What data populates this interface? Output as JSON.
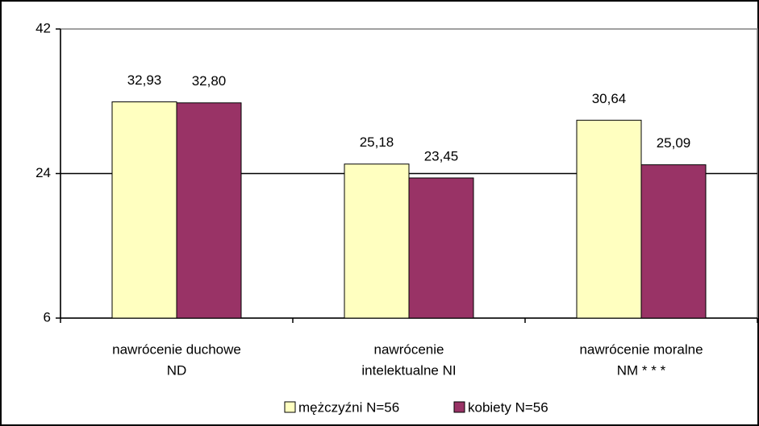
{
  "chart_data": {
    "type": "bar",
    "categories": [
      [
        "nawrócenie  duchowe",
        "ND"
      ],
      [
        "nawrócenie",
        "intelektualne NI"
      ],
      [
        "nawrócenie   moralne",
        "NM * * *"
      ]
    ],
    "series": [
      {
        "name": "mężczyźni N=56",
        "color": "#ffffc0",
        "values": [
          32.93,
          25.18,
          30.64
        ],
        "value_labels": [
          "32,93",
          "25,18",
          "30,64"
        ]
      },
      {
        "name": "kobiety N=56",
        "color": "#993366",
        "values": [
          32.8,
          23.45,
          25.09
        ],
        "value_labels": [
          "32,80",
          "23,45",
          "25,09"
        ]
      }
    ],
    "ylim": [
      6,
      42
    ],
    "yticks": [
      6,
      24,
      42
    ],
    "grid": true,
    "legend": "bottom"
  }
}
